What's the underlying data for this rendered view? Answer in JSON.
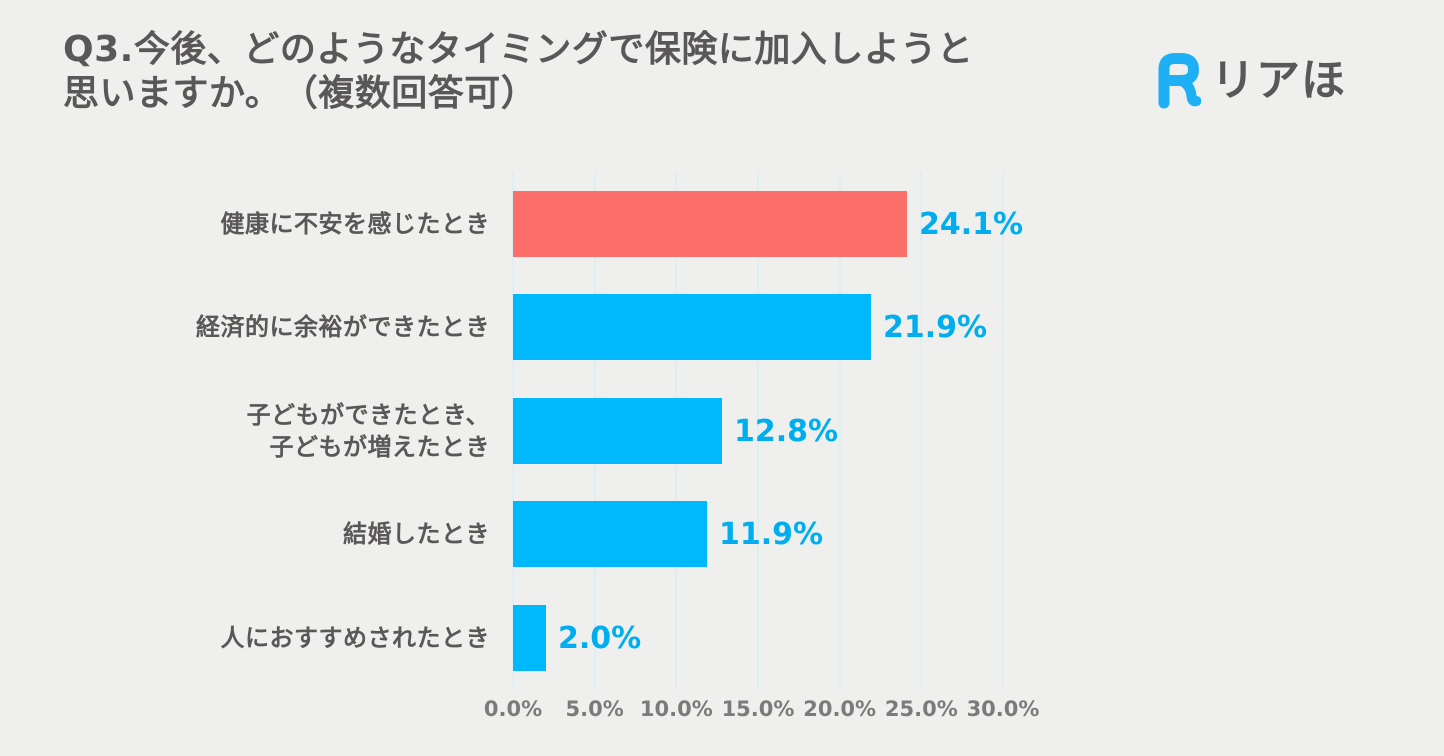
{
  "header": {
    "title": "Q3.今後、どのようなタイミングで保険に加入しようと\n思いますか。　（複数回答可）",
    "logo_text": "リアほ",
    "logo_mark_color": "#1FAFF4",
    "logo_text_color": "#595757"
  },
  "chart_data": {
    "type": "bar",
    "orientation": "horizontal",
    "title": "Q3.今後、どのようなタイミングで保険に加入しようと思いますか。（複数回答可）",
    "categories": [
      "健康に不安を感じたとき",
      "経済的に余裕ができたとき",
      "子どもができたとき、\n子どもが増えたとき",
      "結婚したとき",
      "人におすすめされたとき"
    ],
    "values": [
      24.1,
      21.9,
      12.8,
      11.9,
      2.0
    ],
    "value_labels": [
      "24.1%",
      "21.9%",
      "12.8%",
      "11.9%",
      "2.0%"
    ],
    "bar_colors": [
      "#FC6E69",
      "#00B9FC",
      "#00B9FC",
      "#00B9FC",
      "#00B9FC"
    ],
    "value_label_color": "#00AEEF",
    "xlabel": "",
    "ylabel": "",
    "xlim": [
      0,
      30
    ],
    "x_ticks": [
      0,
      5,
      10,
      15,
      20,
      25,
      30
    ],
    "x_tick_labels": [
      "0.0%",
      "5.0%",
      "10.0%",
      "15.0%",
      "20.0%",
      "25.0%",
      "30.0%"
    ],
    "grid": "vertical-only",
    "legend": "none",
    "background_color": "#EFEFED"
  }
}
